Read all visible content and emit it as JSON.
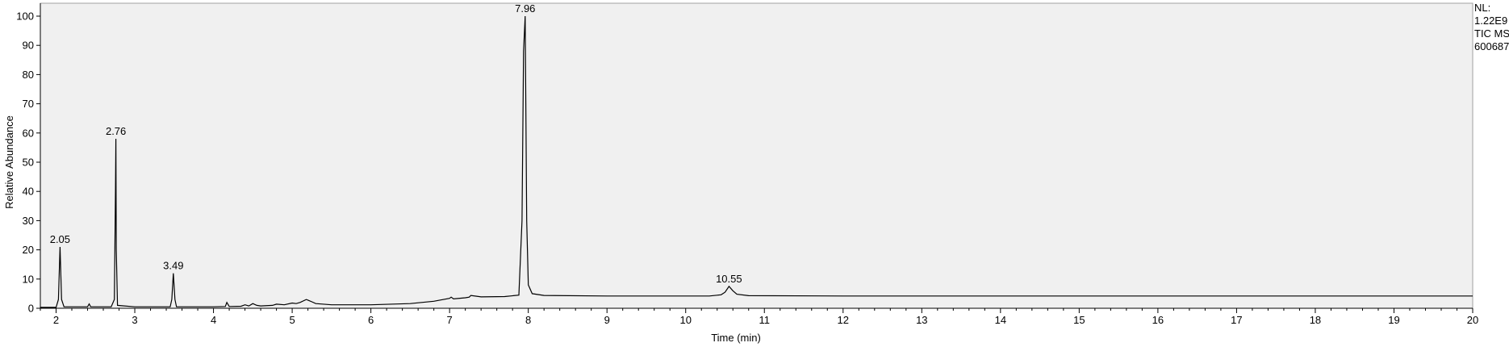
{
  "chart_data": {
    "type": "line",
    "xlabel": "Time (min)",
    "ylabel": "Relative Abundance",
    "xlim": [
      1.8,
      20
    ],
    "ylim": [
      0,
      100
    ],
    "x_ticks": [
      2,
      3,
      4,
      5,
      6,
      7,
      8,
      9,
      10,
      11,
      12,
      13,
      14,
      15,
      16,
      17,
      18,
      19,
      20
    ],
    "y_ticks": [
      0,
      10,
      20,
      30,
      40,
      50,
      60,
      70,
      80,
      90,
      100
    ],
    "grid": false,
    "background": "#f0f0f0",
    "line_color": "#000000",
    "info_lines": [
      "NL:",
      "1.22E9",
      "TIC  MS",
      "600687"
    ],
    "peaks": [
      {
        "x": 2.05,
        "y": 21,
        "label": "2.05"
      },
      {
        "x": 2.76,
        "y": 58,
        "label": "2.76"
      },
      {
        "x": 3.49,
        "y": 12,
        "label": "3.49"
      },
      {
        "x": 7.96,
        "y": 100,
        "label": "7.96"
      },
      {
        "x": 10.55,
        "y": 7.5,
        "label": "10.55"
      }
    ],
    "series": [
      {
        "x": [
          1.8,
          2.0,
          2.03,
          2.05,
          2.07,
          2.1,
          2.4,
          2.42,
          2.44,
          2.7,
          2.74,
          2.755,
          2.76,
          2.765,
          2.78,
          3.0,
          3.45,
          3.47,
          3.49,
          3.51,
          3.53,
          4.0,
          4.15,
          4.17,
          4.2,
          4.35,
          4.4,
          4.45,
          4.5,
          4.55,
          4.6,
          4.75,
          4.8,
          4.9,
          5.0,
          5.05,
          5.1,
          5.18,
          5.25,
          5.3,
          5.5,
          6.0,
          6.5,
          6.8,
          7.0,
          7.02,
          7.05,
          7.2,
          7.25,
          7.27,
          7.4,
          7.7,
          7.88,
          7.92,
          7.94,
          7.96,
          7.98,
          8.0,
          8.05,
          8.2,
          9.0,
          10.3,
          10.45,
          10.5,
          10.55,
          10.6,
          10.65,
          10.8,
          12.0,
          14.0,
          16.0,
          18.0,
          20.0
        ],
        "y": [
          0.3,
          0.3,
          3,
          21,
          3,
          0.5,
          0.5,
          1.5,
          0.5,
          0.5,
          3,
          40,
          58,
          20,
          1,
          0.5,
          0.5,
          3,
          12,
          3,
          0.5,
          0.5,
          0.6,
          2,
          0.6,
          0.7,
          1.2,
          0.8,
          1.6,
          1.0,
          0.8,
          1.0,
          1.4,
          1.2,
          1.8,
          1.6,
          2.0,
          3.0,
          2.2,
          1.6,
          1.2,
          1.2,
          1.6,
          2.4,
          3.4,
          3.8,
          3.2,
          3.6,
          3.8,
          4.4,
          3.9,
          4.0,
          4.5,
          30,
          88,
          100,
          30,
          8,
          5,
          4.4,
          4.2,
          4.2,
          4.6,
          5.5,
          7.5,
          6.0,
          4.8,
          4.3,
          4.2,
          4.2,
          4.2,
          4.2,
          4.2
        ]
      }
    ]
  }
}
